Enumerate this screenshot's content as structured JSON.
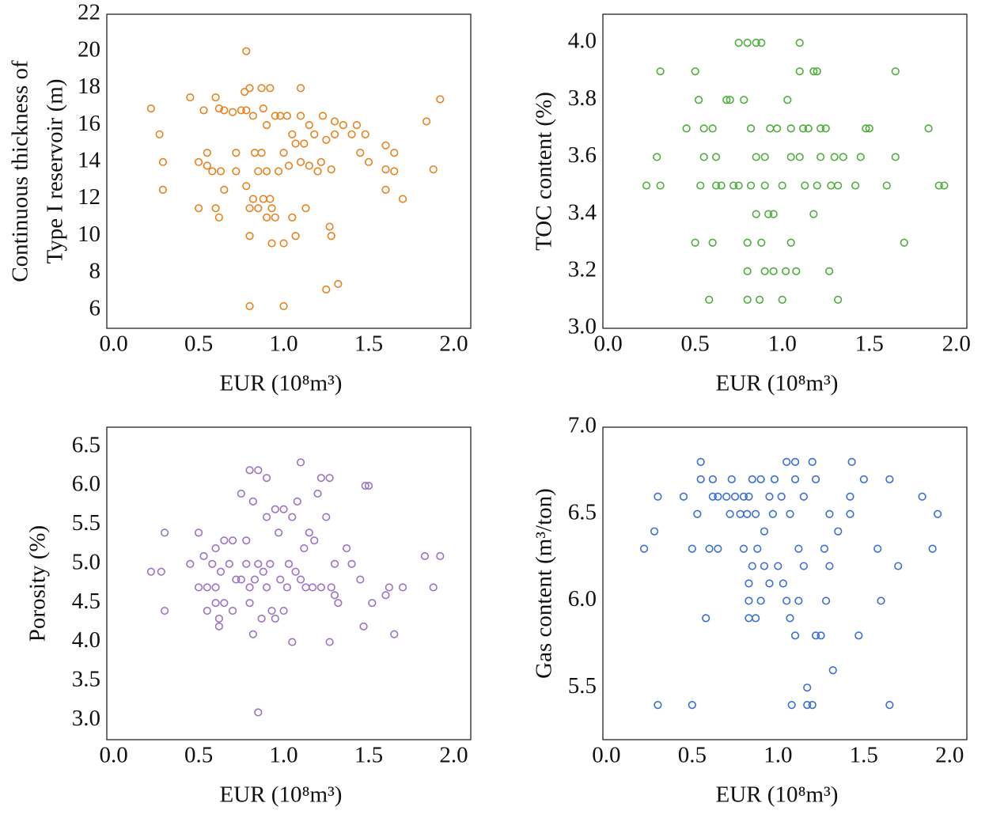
{
  "chart_data": [
    {
      "type": "scatter",
      "xlabel": "EUR (10⁸m³)",
      "ylabel": [
        "Continuous thickness of",
        "Type I reservoir (m)"
      ],
      "color": "#e8821e",
      "xlim": [
        -0.04,
        2.1
      ],
      "ylim": [
        5,
        22
      ],
      "xticks": [
        {
          "value": 0,
          "label": "0.0"
        },
        0.5,
        {
          "value": 1,
          "label": "1.0"
        },
        1.5,
        {
          "value": 2,
          "label": "2.0"
        }
      ],
      "yticks": [
        6,
        8,
        10,
        12,
        14,
        16,
        18,
        20,
        22
      ],
      "x": [
        0.22,
        0.27,
        0.29,
        0.29,
        0.45,
        0.5,
        0.5,
        0.53,
        0.55,
        0.55,
        0.58,
        0.6,
        0.6,
        0.62,
        0.62,
        0.63,
        0.65,
        0.65,
        0.7,
        0.72,
        0.72,
        0.75,
        0.77,
        0.78,
        0.78,
        0.78,
        0.8,
        0.8,
        0.8,
        0.8,
        0.82,
        0.82,
        0.83,
        0.85,
        0.85,
        0.87,
        0.87,
        0.88,
        0.88,
        0.9,
        0.9,
        0.9,
        0.92,
        0.92,
        0.93,
        0.93,
        0.95,
        0.95,
        0.97,
        0.98,
        1.0,
        1.0,
        1.0,
        1.02,
        1.03,
        1.05,
        1.05,
        1.07,
        1.07,
        1.1,
        1.1,
        1.1,
        1.12,
        1.13,
        1.15,
        1.15,
        1.18,
        1.2,
        1.22,
        1.23,
        1.25,
        1.25,
        1.27,
        1.28,
        1.28,
        1.3,
        1.3,
        1.32,
        1.35,
        1.4,
        1.43,
        1.45,
        1.48,
        1.5,
        1.6,
        1.6,
        1.6,
        1.65,
        1.65,
        1.7,
        1.84,
        1.88,
        1.92
      ],
      "values": [
        16.9,
        15.5,
        14,
        12.5,
        17.5,
        11.5,
        14,
        16.8,
        14.5,
        13.8,
        13.5,
        11.5,
        17.5,
        11,
        16.9,
        13.5,
        16.8,
        12.5,
        16.7,
        13.5,
        14.5,
        16.8,
        17.8,
        20,
        16.8,
        12.7,
        6.2,
        10,
        11.5,
        18,
        16.5,
        12,
        14.5,
        13.5,
        11.5,
        18,
        14.5,
        12,
        16.9,
        16,
        11,
        13.5,
        18,
        12,
        9.6,
        11.5,
        16.5,
        11,
        13.5,
        16.5,
        6.2,
        14.5,
        9.6,
        16.5,
        13.8,
        11,
        15.5,
        10,
        15,
        18,
        16.5,
        14,
        15,
        11.5,
        16,
        13.8,
        15.5,
        13.5,
        14,
        16.5,
        7.1,
        15.2,
        10.5,
        13.6,
        10,
        16.2,
        15.5,
        7.4,
        16,
        15.5,
        16,
        14.5,
        15.5,
        14,
        14.9,
        13.6,
        12.5,
        14.5,
        13.5,
        12,
        16.2,
        13.6,
        17.4
      ]
    },
    {
      "type": "scatter",
      "xlabel": "EUR (10⁸m³)",
      "ylabel": [
        "TOC content (%)"
      ],
      "color": "#4caf3a",
      "xlim": [
        -0.03,
        2.06
      ],
      "ylim": [
        3.0,
        4.1
      ],
      "xticks": [
        {
          "value": 0,
          "label": "0.0"
        },
        0.5,
        {
          "value": 1,
          "label": "1.0"
        },
        1.5,
        {
          "value": 2,
          "label": "2.0"
        }
      ],
      "yticks": [
        {
          "value": 3,
          "label": "3.0"
        },
        3.2,
        3.4,
        3.6,
        3.8,
        {
          "value": 4,
          "label": "4.0"
        }
      ],
      "x": [
        0.22,
        0.28,
        0.3,
        0.3,
        0.45,
        0.5,
        0.5,
        0.52,
        0.53,
        0.55,
        0.55,
        0.58,
        0.6,
        0.6,
        0.62,
        0.62,
        0.65,
        0.68,
        0.7,
        0.72,
        0.75,
        0.75,
        0.78,
        0.8,
        0.8,
        0.8,
        0.8,
        0.82,
        0.82,
        0.85,
        0.85,
        0.85,
        0.87,
        0.88,
        0.88,
        0.9,
        0.9,
        0.9,
        0.92,
        0.93,
        0.95,
        0.95,
        0.97,
        1.0,
        1.0,
        1.02,
        1.03,
        1.05,
        1.05,
        1.05,
        1.08,
        1.1,
        1.1,
        1.1,
        1.12,
        1.13,
        1.15,
        1.18,
        1.18,
        1.2,
        1.2,
        1.22,
        1.22,
        1.25,
        1.27,
        1.28,
        1.3,
        1.32,
        1.32,
        1.35,
        1.42,
        1.45,
        1.48,
        1.5,
        1.6,
        1.65,
        1.65,
        1.7,
        1.84,
        1.9,
        1.93
      ],
      "values": [
        3.5,
        3.6,
        3.9,
        3.5,
        3.7,
        3.9,
        3.3,
        3.8,
        3.5,
        3.7,
        3.6,
        3.1,
        3.3,
        3.7,
        3.6,
        3.5,
        3.5,
        3.8,
        3.8,
        3.5,
        4.0,
        3.5,
        3.8,
        3.1,
        3.3,
        3.2,
        4.0,
        3.7,
        3.5,
        4.0,
        3.6,
        3.4,
        3.1,
        4.0,
        3.3,
        3.2,
        3.6,
        3.5,
        3.4,
        3.7,
        3.2,
        3.4,
        3.7,
        3.5,
        3.1,
        3.2,
        3.8,
        3.3,
        3.7,
        3.6,
        3.2,
        4.0,
        3.9,
        3.6,
        3.7,
        3.5,
        3.7,
        3.9,
        3.4,
        3.9,
        3.5,
        3.7,
        3.6,
        3.7,
        3.2,
        3.5,
        3.6,
        3.1,
        3.5,
        3.6,
        3.5,
        3.6,
        3.7,
        3.7,
        3.5,
        3.9,
        3.6,
        3.3,
        3.7,
        3.5,
        3.5
      ]
    },
    {
      "type": "scatter",
      "xlabel": "EUR (10⁸m³)",
      "ylabel": [
        "Porosity (%)"
      ],
      "color": "#9b72c8",
      "xlim": [
        -0.04,
        2.1
      ],
      "ylim": [
        2.75,
        6.75
      ],
      "xticks": [
        {
          "value": 0,
          "label": "0.0"
        },
        0.5,
        {
          "value": 1,
          "label": "1.0"
        },
        1.5,
        {
          "value": 2,
          "label": "2.0"
        }
      ],
      "yticks": [
        {
          "value": 3,
          "label": "3.0"
        },
        3.5,
        {
          "value": 4,
          "label": "4.0"
        },
        4.5,
        {
          "value": 5,
          "label": "5.0"
        },
        5.5,
        {
          "value": 6,
          "label": "6.0"
        },
        6.5
      ],
      "x": [
        0.22,
        0.28,
        0.3,
        0.3,
        0.45,
        0.5,
        0.5,
        0.53,
        0.55,
        0.55,
        0.58,
        0.6,
        0.6,
        0.6,
        0.62,
        0.62,
        0.63,
        0.65,
        0.65,
        0.68,
        0.7,
        0.7,
        0.72,
        0.75,
        0.75,
        0.78,
        0.78,
        0.8,
        0.8,
        0.8,
        0.82,
        0.82,
        0.83,
        0.85,
        0.85,
        0.85,
        0.87,
        0.88,
        0.9,
        0.9,
        0.9,
        0.92,
        0.93,
        0.95,
        0.95,
        0.97,
        0.98,
        1.0,
        1.0,
        1.02,
        1.03,
        1.05,
        1.05,
        1.07,
        1.08,
        1.1,
        1.1,
        1.12,
        1.13,
        1.15,
        1.17,
        1.18,
        1.2,
        1.22,
        1.22,
        1.25,
        1.27,
        1.27,
        1.28,
        1.3,
        1.3,
        1.32,
        1.37,
        1.4,
        1.45,
        1.47,
        1.48,
        1.5,
        1.52,
        1.6,
        1.62,
        1.65,
        1.7,
        1.83,
        1.88,
        1.92
      ],
      "values": [
        4.9,
        4.9,
        5.4,
        4.4,
        5.0,
        5.4,
        4.7,
        5.1,
        4.4,
        4.7,
        5.0,
        5.2,
        4.7,
        4.5,
        4.3,
        4.2,
        4.9,
        5.3,
        4.5,
        5.0,
        5.3,
        4.4,
        4.8,
        5.9,
        4.8,
        5.3,
        5.0,
        6.2,
        4.7,
        4.5,
        5.8,
        4.1,
        4.8,
        6.2,
        5.0,
        3.1,
        4.3,
        4.9,
        6.1,
        5.6,
        4.7,
        5.0,
        4.4,
        5.7,
        4.3,
        5.4,
        4.8,
        5.7,
        4.4,
        4.7,
        5.0,
        4.0,
        5.6,
        4.9,
        5.8,
        6.3,
        4.8,
        5.2,
        4.7,
        5.4,
        4.7,
        5.3,
        5.9,
        4.7,
        6.1,
        5.6,
        4.0,
        6.1,
        4.7,
        5.0,
        4.6,
        4.5,
        5.2,
        5.0,
        4.8,
        4.2,
        6.0,
        6.0,
        4.5,
        4.6,
        4.7,
        4.1,
        4.7,
        5.1,
        4.7,
        5.1
      ]
    },
    {
      "type": "scatter",
      "xlabel": "EUR (10⁸m³)",
      "ylabel": [
        "Gas content (m³/ton)"
      ],
      "color": "#3a6fd6",
      "xlim": [
        -0.02,
        2.1
      ],
      "ylim": [
        5.2,
        7.0
      ],
      "xticks": [
        {
          "value": 0,
          "label": "0.0"
        },
        0.5,
        {
          "value": 1,
          "label": "1.0"
        },
        1.5,
        {
          "value": 2,
          "label": "2.0"
        }
      ],
      "yticks": [
        5.5,
        {
          "value": 6,
          "label": "6.0"
        },
        6.5,
        {
          "value": 7,
          "label": "7.0"
        }
      ],
      "x": [
        0.22,
        0.28,
        0.3,
        0.3,
        0.45,
        0.5,
        0.5,
        0.53,
        0.55,
        0.55,
        0.58,
        0.6,
        0.62,
        0.62,
        0.65,
        0.65,
        0.7,
        0.72,
        0.73,
        0.75,
        0.78,
        0.8,
        0.8,
        0.82,
        0.83,
        0.83,
        0.83,
        0.83,
        0.85,
        0.85,
        0.87,
        0.87,
        0.88,
        0.9,
        0.9,
        0.92,
        0.92,
        0.95,
        0.95,
        0.97,
        0.98,
        1.0,
        1.02,
        1.03,
        1.05,
        1.05,
        1.07,
        1.07,
        1.08,
        1.1,
        1.1,
        1.1,
        1.12,
        1.12,
        1.15,
        1.15,
        1.17,
        1.17,
        1.2,
        1.2,
        1.22,
        1.22,
        1.25,
        1.27,
        1.28,
        1.3,
        1.3,
        1.32,
        1.35,
        1.42,
        1.42,
        1.43,
        1.47,
        1.5,
        1.58,
        1.6,
        1.65,
        1.65,
        1.7,
        1.84,
        1.9,
        1.93
      ],
      "values": [
        6.3,
        6.4,
        6.6,
        5.4,
        6.6,
        6.3,
        5.4,
        6.5,
        6.8,
        6.7,
        5.9,
        6.3,
        6.7,
        6.6,
        6.6,
        6.3,
        6.6,
        6.5,
        6.7,
        6.6,
        6.5,
        6.6,
        6.3,
        6.5,
        6.6,
        6.1,
        6.0,
        5.9,
        6.7,
        6.2,
        6.5,
        5.9,
        6.3,
        6.7,
        6.0,
        6.4,
        6.2,
        6.6,
        6.1,
        6.5,
        6.7,
        6.2,
        6.6,
        6.1,
        6.8,
        6.0,
        6.5,
        5.9,
        5.4,
        6.8,
        6.7,
        5.8,
        6.3,
        6.0,
        6.6,
        6.2,
        5.5,
        5.4,
        6.8,
        5.4,
        6.7,
        5.8,
        5.8,
        6.3,
        6.0,
        6.5,
        6.2,
        5.6,
        6.4,
        6.6,
        6.5,
        6.8,
        5.8,
        6.7,
        6.3,
        6.0,
        6.7,
        5.4,
        6.2,
        6.6,
        6.3,
        6.5
      ]
    }
  ]
}
